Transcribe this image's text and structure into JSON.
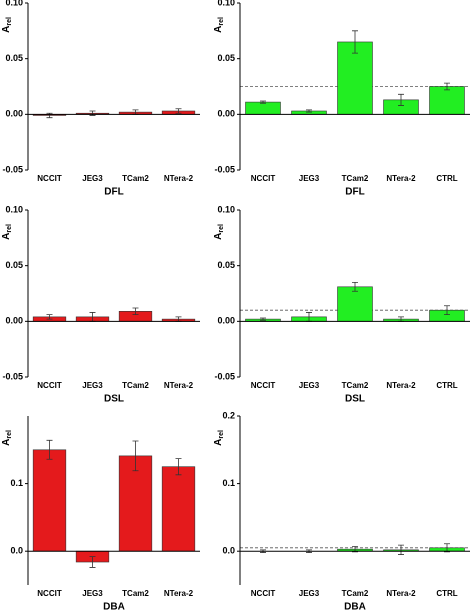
{
  "chart_data": [
    {
      "type": "bar",
      "ylabel": {
        "main": "A",
        "sub": "rel"
      },
      "xlabel": "DFL",
      "categories": [
        "NCCIT",
        "JEG3",
        "TCam2",
        "NTera-2"
      ],
      "values": [
        -0.001,
        0.001,
        0.002,
        0.003
      ],
      "errors": [
        0.002,
        0.002,
        0.002,
        0.002
      ],
      "color": "#e41a1c",
      "ylim": [
        -0.05,
        0.1
      ],
      "yticks": [
        {
          "value": 0.1,
          "label": "0.10"
        },
        {
          "value": 0.05,
          "label": "0.05"
        },
        {
          "value": 0,
          "label": "0.00"
        },
        {
          "value": -0.05,
          "label": "-0.05"
        }
      ]
    },
    {
      "type": "bar",
      "ylabel": {
        "main": "A",
        "sub": "rel"
      },
      "xlabel": "DFL",
      "categories": [
        "NCCIT",
        "JEG3",
        "TCam2",
        "NTera-2",
        "CTRL"
      ],
      "values": [
        0.011,
        0.003,
        0.065,
        0.013,
        0.025
      ],
      "errors": [
        0.001,
        0.001,
        0.01,
        0.005,
        0.003
      ],
      "color": "#22ee22",
      "reference_line": 0.025,
      "ylim": [
        -0.05,
        0.1
      ],
      "yticks": [
        {
          "value": 0.1,
          "label": "0.10"
        },
        {
          "value": 0.05,
          "label": "0.05"
        },
        {
          "value": 0,
          "label": "0.00"
        },
        {
          "value": -0.05,
          "label": "-0.05"
        }
      ]
    },
    {
      "type": "bar",
      "ylabel": {
        "main": "A",
        "sub": "rel"
      },
      "xlabel": "DSL",
      "categories": [
        "NCCIT",
        "JEG3",
        "TCam2",
        "NTera-2"
      ],
      "values": [
        0.004,
        0.004,
        0.009,
        0.002
      ],
      "errors": [
        0.002,
        0.004,
        0.003,
        0.002
      ],
      "color": "#e41a1c",
      "ylim": [
        -0.05,
        0.1
      ],
      "yticks": [
        {
          "value": 0.1,
          "label": "0.10"
        },
        {
          "value": 0.05,
          "label": "0.05"
        },
        {
          "value": 0,
          "label": "0.00"
        },
        {
          "value": -0.05,
          "label": "-0.05"
        }
      ]
    },
    {
      "type": "bar",
      "ylabel": {
        "main": "A",
        "sub": "rel"
      },
      "xlabel": "DSL",
      "categories": [
        "NCCIT",
        "JEG3",
        "TCam2",
        "NTera-2",
        "CTRL"
      ],
      "values": [
        0.002,
        0.004,
        0.031,
        0.002,
        0.01
      ],
      "errors": [
        0.001,
        0.004,
        0.004,
        0.002,
        0.004
      ],
      "color": "#22ee22",
      "reference_line": 0.01,
      "ylim": [
        -0.05,
        0.1
      ],
      "yticks": [
        {
          "value": 0.1,
          "label": "0.10"
        },
        {
          "value": 0.05,
          "label": "0.05"
        },
        {
          "value": 0,
          "label": "0.00"
        },
        {
          "value": -0.05,
          "label": "-0.05"
        }
      ]
    },
    {
      "type": "bar",
      "ylabel": {
        "main": "A",
        "sub": "rel"
      },
      "xlabel": "DBA",
      "categories": [
        "NCCIT",
        "JEG3",
        "TCam2",
        "NTera-2"
      ],
      "values": [
        0.15,
        -0.016,
        0.141,
        0.125
      ],
      "errors": [
        0.014,
        0.008,
        0.022,
        0.012
      ],
      "color": "#e41a1c",
      "ylim": [
        -0.05,
        0.2
      ],
      "yticks": [
        0.1,
        {
          "value": 0,
          "label": "0.0"
        }
      ]
    },
    {
      "type": "bar",
      "ylabel": {
        "main": "A",
        "sub": "rel"
      },
      "xlabel": "DBA",
      "categories": [
        "NCCIT",
        "JEG3",
        "TCam2",
        "NTera-2",
        "CTRL"
      ],
      "values": [
        0.0,
        0.0,
        0.003,
        0.002,
        0.005
      ],
      "errors": [
        0.002,
        0.002,
        0.004,
        0.007,
        0.006
      ],
      "color": "#22ee22",
      "reference_line": 0.005,
      "ylim": [
        -0.05,
        0.2
      ],
      "yticks": [
        0.2,
        0.1,
        {
          "value": 0,
          "label": "0.0"
        }
      ]
    }
  ]
}
